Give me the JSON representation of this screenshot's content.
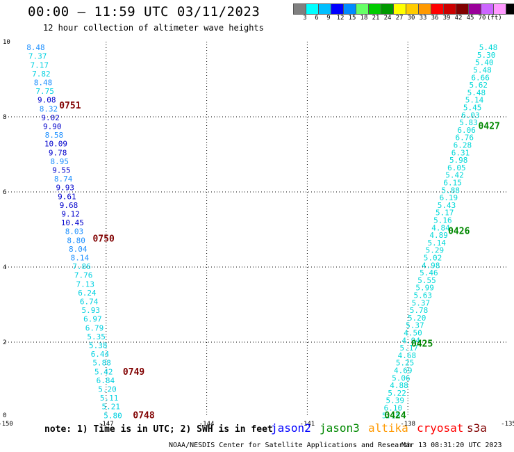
{
  "header": {
    "title": "00:00 — 11:59 UTC 03/11/2023",
    "subtitle": "12 hour collection of altimeter wave heights"
  },
  "legend": {
    "colors": [
      "#808080",
      "#00ffff",
      "#00bfff",
      "#0000ff",
      "#008bff",
      "#66ff66",
      "#00cc00",
      "#009900",
      "#ffff00",
      "#ffcc00",
      "#ff9900",
      "#ff0000",
      "#cc0000",
      "#800000",
      "#990099",
      "#cc66ff",
      "#ff99ff",
      "#000000"
    ],
    "labels": [
      "3",
      "6",
      "9",
      "12",
      "15",
      "18",
      "21",
      "24",
      "27",
      "30",
      "33",
      "36",
      "39",
      "42",
      "45",
      "70",
      "(ft)"
    ]
  },
  "note": "note: 1) Time is in UTC; 2) SWH is in feet",
  "satellites": [
    {
      "name": "jason2",
      "color": "#0000ff"
    },
    {
      "name": "jason3",
      "color": "#008800"
    },
    {
      "name": "altika",
      "color": "#ff9900"
    },
    {
      "name": "cryosat",
      "color": "#ff0000"
    },
    {
      "name": "s3a",
      "color": "#800000"
    }
  ],
  "footer": {
    "credit": "NOAA/NESDIS Center for Satellite Applications and Research",
    "generated": "Mar 13 08:31:20 UTC 2023"
  },
  "chart_data": {
    "type": "scatter",
    "title": "00:00 — 11:59 UTC 03/11/2023",
    "subtitle": "12 hour collection of altimeter wave heights",
    "xlim": [
      -150,
      -135
    ],
    "ylim": [
      0,
      10
    ],
    "x_ticks": [
      "-150",
      "-147",
      "-144",
      "-141",
      "-138",
      "-135"
    ],
    "y_ticks": [
      "0",
      "2",
      "4",
      "6",
      "8",
      "10"
    ],
    "grid": true,
    "value_unit": "ft",
    "tracks": [
      {
        "satellite": "s3a",
        "label_color": "#800000",
        "start": [
          -149.1,
          9.85
        ],
        "end": [
          -146.8,
          0.05
        ],
        "values": [
          "8.48",
          "7.37",
          "7.17",
          "7.82",
          "8.48",
          "7.75",
          "9.08",
          "8.32",
          "9.02",
          "9.90",
          "8.58",
          "10.09",
          "9.78",
          "8.95",
          "9.55",
          "8.74",
          "9.93",
          "9.61",
          "9.68",
          "9.12",
          "10.45",
          "8.03",
          "8.80",
          "8.04",
          "8.14",
          "7.86",
          "7.76",
          "7.13",
          "6.24",
          "6.74",
          "5.93",
          "6.97",
          "6.79",
          "5.35",
          "5.38",
          "6.44",
          "5.88",
          "5.42",
          "6.84",
          "5.20",
          "5.11",
          "5.21",
          "5.80"
        ],
        "times": [
          {
            "label": "0751",
            "x": -148.4,
            "y": 8.3
          },
          {
            "label": "0750",
            "x": -147.4,
            "y": 4.75
          },
          {
            "label": "0749",
            "x": -146.5,
            "y": 1.2
          },
          {
            "label": "0748",
            "x": -146.2,
            "y": 0.05
          }
        ]
      },
      {
        "satellite": "jason3",
        "label_color": "#008800",
        "start": [
          -135.6,
          9.85
        ],
        "end": [
          -138.5,
          0.05
        ],
        "values": [
          "5.48",
          "5.30",
          "5.40",
          "5.48",
          "6.66",
          "5.62",
          "5.48",
          "5.14",
          "5.45",
          "6.03",
          "5.83",
          "6.06",
          "6.76",
          "6.28",
          "6.31",
          "5.98",
          "6.05",
          "5.42",
          "6.15",
          "5.88",
          "6.19",
          "5.43",
          "5.17",
          "5.16",
          "4.84",
          "4.89",
          "5.14",
          "5.29",
          "5.02",
          "4.98",
          "5.46",
          "5.55",
          "5.99",
          "5.63",
          "5.37",
          "5.78",
          "5.20",
          "5.37",
          "4.50",
          "4.94",
          "5.17",
          "4.68",
          "5.25",
          "4.69",
          "5.06",
          "4.88",
          "5.22",
          "5.39",
          "6.10",
          "5.18"
        ],
        "times": [
          {
            "label": "0427",
            "x": -135.9,
            "y": 7.75
          },
          {
            "label": "0426",
            "x": -136.8,
            "y": 4.95
          },
          {
            "label": "0425",
            "x": -137.9,
            "y": 1.95
          },
          {
            "label": "0424",
            "x": -138.7,
            "y": 0.05
          }
        ]
      }
    ]
  }
}
